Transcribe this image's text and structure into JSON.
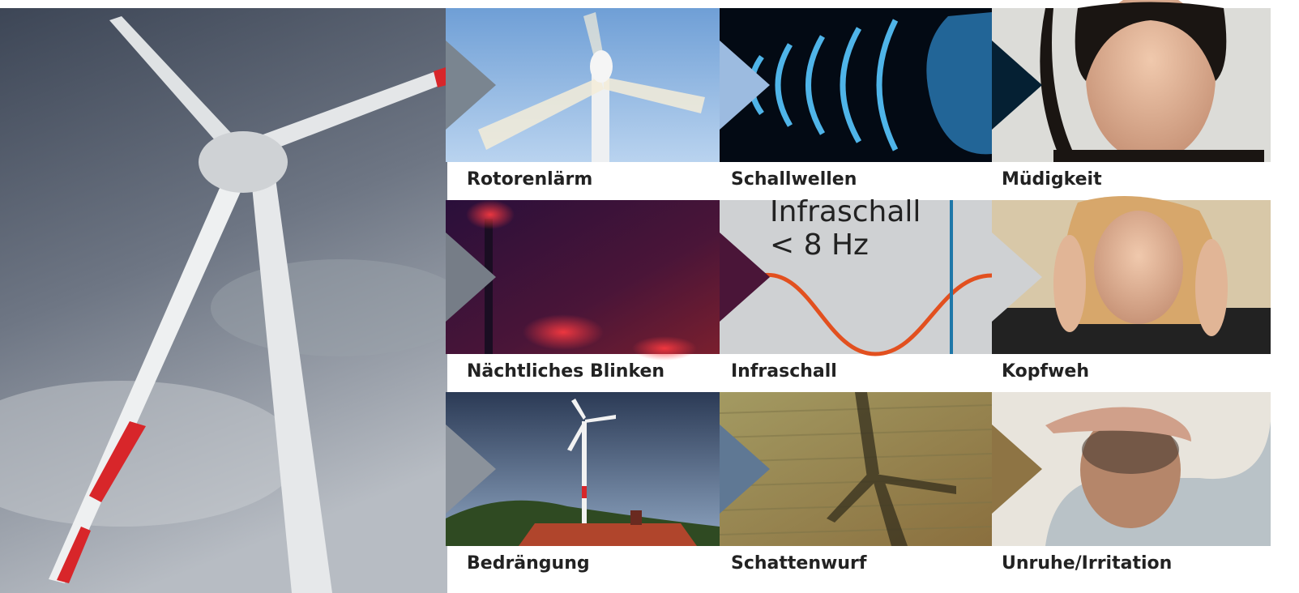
{
  "tiles": [
    {
      "label": "Rotorenlärm"
    },
    {
      "label": "Schallwellen"
    },
    {
      "label": "Müdigkeit"
    },
    {
      "label": "Nächtliches Blinken"
    },
    {
      "label": "Infraschall"
    },
    {
      "label": "Kopfweh"
    },
    {
      "label": "Bedrängung"
    },
    {
      "label": "Schattenwurf"
    },
    {
      "label": "Unruhe/Irritation"
    }
  ],
  "infrasound_panel": {
    "title": "Infraschall",
    "subtitle": "< 8 Hz"
  }
}
